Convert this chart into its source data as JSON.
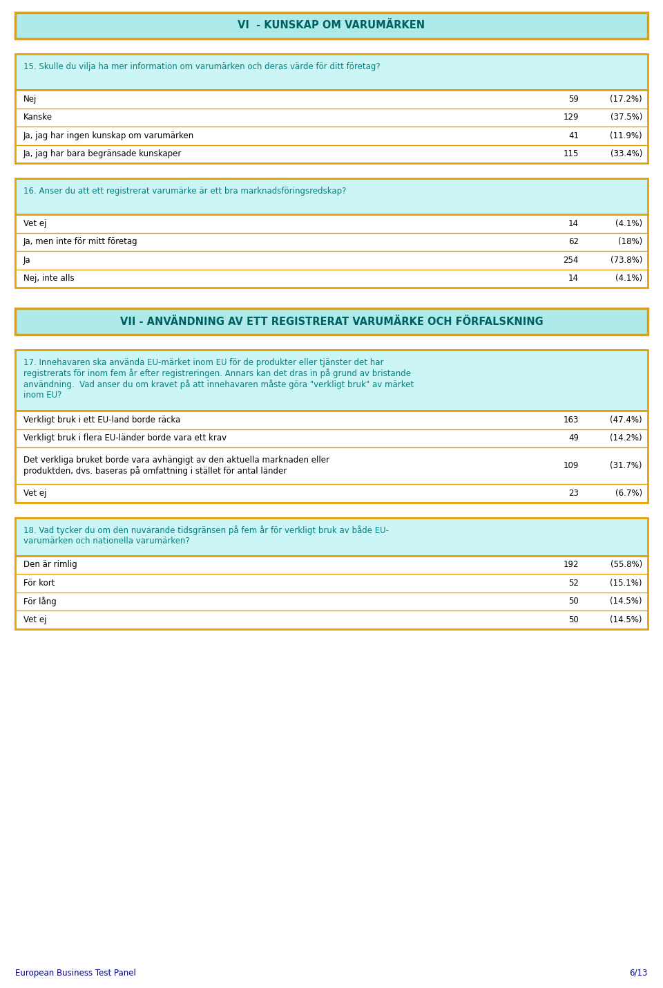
{
  "bg_color": "#ffffff",
  "page_bg": "#ffffff",
  "section_header_bg": "#aeeaea",
  "section_header_border": "#e8a000",
  "section_header_text_color": "#006060",
  "question_box_bg": "#ccf5f5",
  "question_box_border": "#e8a000",
  "answer_box_border": "#e8a000",
  "answer_text_color": "#000000",
  "question_text_color": "#008080",
  "footer_text_color": "#000080",
  "section1_title": "VI  - KUNSKAP OM VARUMÄRKEN",
  "section2_title": "VII - ANVÄNDNING AV ETT REGISTRERAT VARUMÄRKE OCH FÖRFALSKNING",
  "q15_text": "15. Skulle du vilja ha mer information om varumärken och deras värde för ditt företag?",
  "q15_answers": [
    {
      "label": "Nej",
      "n": 59,
      "pct": "(17.2%)"
    },
    {
      "label": "Kanske",
      "n": 129,
      "pct": "(37.5%)"
    },
    {
      "label": "Ja, jag har ingen kunskap om varumärken",
      "n": 41,
      "pct": "(11.9%)"
    },
    {
      "label": "Ja, jag har bara begränsade kunskaper",
      "n": 115,
      "pct": "(33.4%)"
    }
  ],
  "q16_text": "16. Anser du att ett registrerat varumärke är ett bra marknadsföringsredskap?",
  "q16_answers": [
    {
      "label": "Vet ej",
      "n": 14,
      "pct": "(4.1%)"
    },
    {
      "label": "Ja, men inte för mitt företag",
      "n": 62,
      "pct": "(18%)"
    },
    {
      "label": "Ja",
      "n": 254,
      "pct": "(73.8%)"
    },
    {
      "label": "Nej, inte alls",
      "n": 14,
      "pct": "(4.1%)"
    }
  ],
  "q17_text": "17. Innehavaren ska använda EU-märket inom EU för de produkter eller tjänster det har\nregistrerats för inom fem år efter registreringen. Annars kan det dras in på grund av bristande\nanvändning.  Vad anser du om kravet på att innehavaren måste göra \"verkligt bruk\" av märket\ninom EU?",
  "q17_answers": [
    {
      "label": "Verkligt bruk i ett EU-land borde räcka",
      "n": 163,
      "pct": "(47.4%)",
      "multiline": false
    },
    {
      "label": "Verkligt bruk i flera EU-länder borde vara ett krav",
      "n": 49,
      "pct": "(14.2%)",
      "multiline": false
    },
    {
      "label": "Det verkliga bruket borde vara avhängigt av den aktuella marknaden eller\nproduktden, dvs. baseras på omfattning i stället för antal länder",
      "n": 109,
      "pct": "(31.7%)",
      "multiline": true
    },
    {
      "label": "Vet ej",
      "n": 23,
      "pct": "(6.7%)",
      "multiline": false
    }
  ],
  "q18_text": "18. Vad tycker du om den nuvarande tidsgränsen på fem år för verkligt bruk av både EU-\nvarumärken och nationella varumärken?",
  "q18_answers": [
    {
      "label": "Den är rimlig",
      "n": 192,
      "pct": "(55.8%)"
    },
    {
      "label": "För kort",
      "n": 52,
      "pct": "(15.1%)"
    },
    {
      "label": "För lång",
      "n": 50,
      "pct": "(14.5%)"
    },
    {
      "label": "Vet ej",
      "n": 50,
      "pct": "(14.5%)"
    }
  ],
  "footer_left": "European Business Test Panel",
  "footer_right": "6/13"
}
